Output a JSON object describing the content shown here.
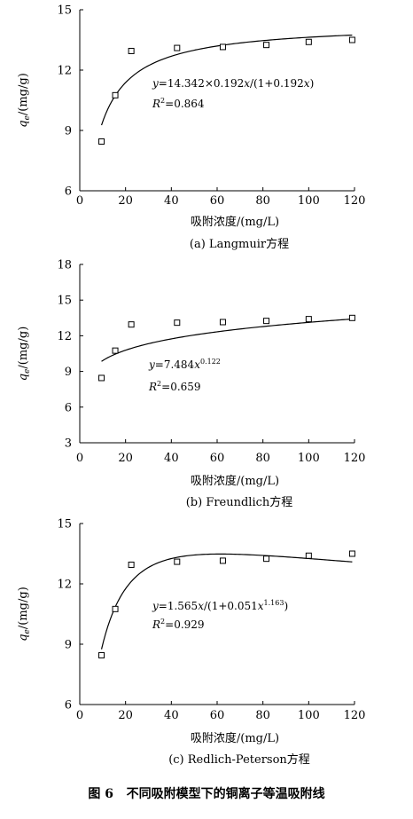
{
  "chart_data": [
    {
      "type": "scatter",
      "xlabel": "吸附浓度/(mg/L)",
      "ylabel_parts": [
        "q",
        "e",
        "/(mg/g)"
      ],
      "xlim": [
        0,
        120
      ],
      "ylim": [
        6,
        15
      ],
      "xticks": [
        0,
        20,
        40,
        60,
        80,
        100,
        120
      ],
      "yticks": [
        6,
        9,
        12,
        15
      ],
      "points_x": [
        9.5,
        15.5,
        22.5,
        42.5,
        62.5,
        81.5,
        100,
        119
      ],
      "points_y": [
        8.45,
        10.75,
        12.95,
        13.1,
        13.15,
        13.25,
        13.4,
        13.5
      ],
      "fit": {
        "model": "langmuir",
        "qm": 14.342,
        "k": 0.192,
        "x_start": 9.5,
        "x_end": 119
      },
      "equation": {
        "a": "y=14.342×0.192",
        "b": "x",
        "c": "/(1+0.192",
        "d": "x",
        "e": ")"
      },
      "r2": {
        "r": "R",
        "sup": "2",
        "val": "=0.864"
      },
      "caption": "(a) Langmuir方程"
    },
    {
      "type": "scatter",
      "xlabel": "吸附浓度/(mg/L)",
      "ylabel_parts": [
        "q",
        "e",
        "/(mg/g)"
      ],
      "xlim": [
        0,
        120
      ],
      "ylim": [
        3,
        18
      ],
      "xticks": [
        0,
        20,
        40,
        60,
        80,
        100,
        120
      ],
      "yticks": [
        3,
        6,
        9,
        12,
        15,
        18
      ],
      "points_x": [
        9.5,
        15.5,
        22.5,
        42.5,
        62.5,
        81.5,
        100,
        119
      ],
      "points_y": [
        8.45,
        10.75,
        12.95,
        13.1,
        13.15,
        13.25,
        13.4,
        13.5
      ],
      "fit": {
        "model": "freundlich",
        "k": 7.484,
        "n": 0.122,
        "x_start": 9.5,
        "x_end": 119
      },
      "equation": {
        "a": "y=7.484",
        "b": "x",
        "sup": "0.122"
      },
      "r2": {
        "r": "R",
        "sup": "2",
        "val": "=0.659"
      },
      "caption": "(b) Freundlich方程"
    },
    {
      "type": "scatter",
      "xlabel": "吸附浓度/(mg/L)",
      "ylabel_parts": [
        "q",
        "e",
        "/(mg/g)"
      ],
      "xlim": [
        0,
        120
      ],
      "ylim": [
        6,
        15
      ],
      "xticks": [
        0,
        20,
        40,
        60,
        80,
        100,
        120
      ],
      "yticks": [
        6,
        9,
        12,
        15
      ],
      "points_x": [
        9.5,
        15.5,
        22.5,
        42.5,
        62.5,
        81.5,
        100,
        119
      ],
      "points_y": [
        8.45,
        10.75,
        12.95,
        13.1,
        13.15,
        13.25,
        13.4,
        13.5
      ],
      "fit": {
        "model": "redlich-peterson",
        "a": 1.565,
        "b": 0.051,
        "g": 1.163,
        "x_start": 9.5,
        "x_end": 119
      },
      "equation": {
        "a": "y=1.565",
        "b": "x",
        "c": "/(1+0.051",
        "d": "x",
        "sup": "1.163",
        "e": ")"
      },
      "r2": {
        "r": "R",
        "sup": "2",
        "val": "=0.929"
      },
      "caption": "(c) Redlich-Peterson方程"
    }
  ],
  "figure_title": {
    "label": "图 6",
    "text": "不同吸附模型下的铜离子等温吸附线"
  }
}
